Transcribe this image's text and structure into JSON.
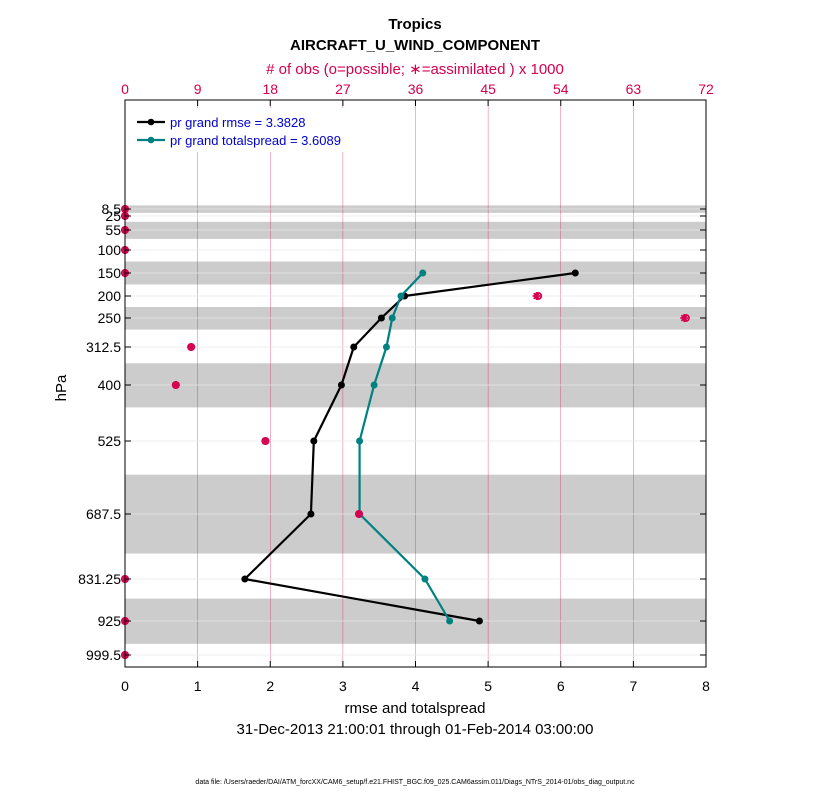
{
  "chart_data": {
    "type": "line",
    "title": "Tropics",
    "subtitle": "AIRCRAFT_U_WIND_COMPONENT",
    "top_axis_label": "# of obs (o=possible; ∗=assimilated ) x 1000",
    "top_ticks": [
      "0",
      "9",
      "18",
      "27",
      "36",
      "45",
      "54",
      "63",
      "72"
    ],
    "top_range": [
      0,
      72
    ],
    "xlabel": "rmse and totalspread",
    "x_ticks": [
      "0",
      "1",
      "2",
      "3",
      "4",
      "5",
      "6",
      "7",
      "8"
    ],
    "xlim": [
      0,
      8
    ],
    "ylabel": "hPa",
    "y_ticks": [
      "8.5",
      "25",
      "55",
      "100",
      "150",
      "200",
      "250",
      "312.5",
      "400",
      "525",
      "687.5",
      "831.25",
      "925",
      "999.5"
    ],
    "levels": [
      8.5,
      25,
      55,
      100,
      150,
      200,
      250,
      312.5,
      400,
      525,
      687.5,
      831.25,
      925,
      999.5
    ],
    "shaded_bands": [
      [
        0,
        17.5
      ],
      [
        37.5,
        75
      ],
      [
        125,
        175
      ],
      [
        225,
        275
      ],
      [
        350,
        450
      ],
      [
        600,
        775
      ],
      [
        875,
        975
      ]
    ],
    "series": [
      {
        "name": "pr grand rmse = 3.3828",
        "color": "#000000",
        "levels": [
          150,
          200,
          250,
          312.5,
          400,
          525,
          687.5,
          831.25,
          925
        ],
        "values": [
          6.2,
          3.85,
          3.53,
          3.15,
          2.98,
          2.6,
          2.56,
          1.65,
          4.88
        ]
      },
      {
        "name": "pr grand totalspread = 3.6089",
        "color": "#008080",
        "levels": [
          150,
          200,
          250,
          312.5,
          400,
          525,
          687.5,
          831.25,
          925
        ],
        "values": [
          4.1,
          3.8,
          3.68,
          3.6,
          3.43,
          3.23,
          3.23,
          4.13,
          4.47
        ]
      }
    ],
    "obs_counts": {
      "color": "#d6004f",
      "levels": [
        8.5,
        25,
        55,
        100,
        150,
        200,
        250,
        312.5,
        400,
        525,
        687.5,
        831.25,
        925,
        999.5
      ],
      "possible": [
        0,
        0,
        0,
        0,
        0,
        51.2,
        69.5,
        8.2,
        6.3,
        17.4,
        29.0,
        0,
        0,
        0
      ],
      "assimilated": [
        0,
        0,
        0,
        0,
        0,
        51.0,
        69.3,
        8.2,
        6.3,
        17.4,
        29.0,
        0,
        0,
        0
      ]
    },
    "legend_position": "top-left",
    "grid": true
  },
  "footer": {
    "period": "31-Dec-2013 21:00:01 through 01-Feb-2014 03:00:00",
    "data_file": "data file: /Users/raeder/DAI/ATM_forcXX/CAM6_setup/f.e21.FHIST_BGC.f09_025.CAM6assim.011/Diags_NTrS_2014-01/obs_diag_output.nc"
  }
}
